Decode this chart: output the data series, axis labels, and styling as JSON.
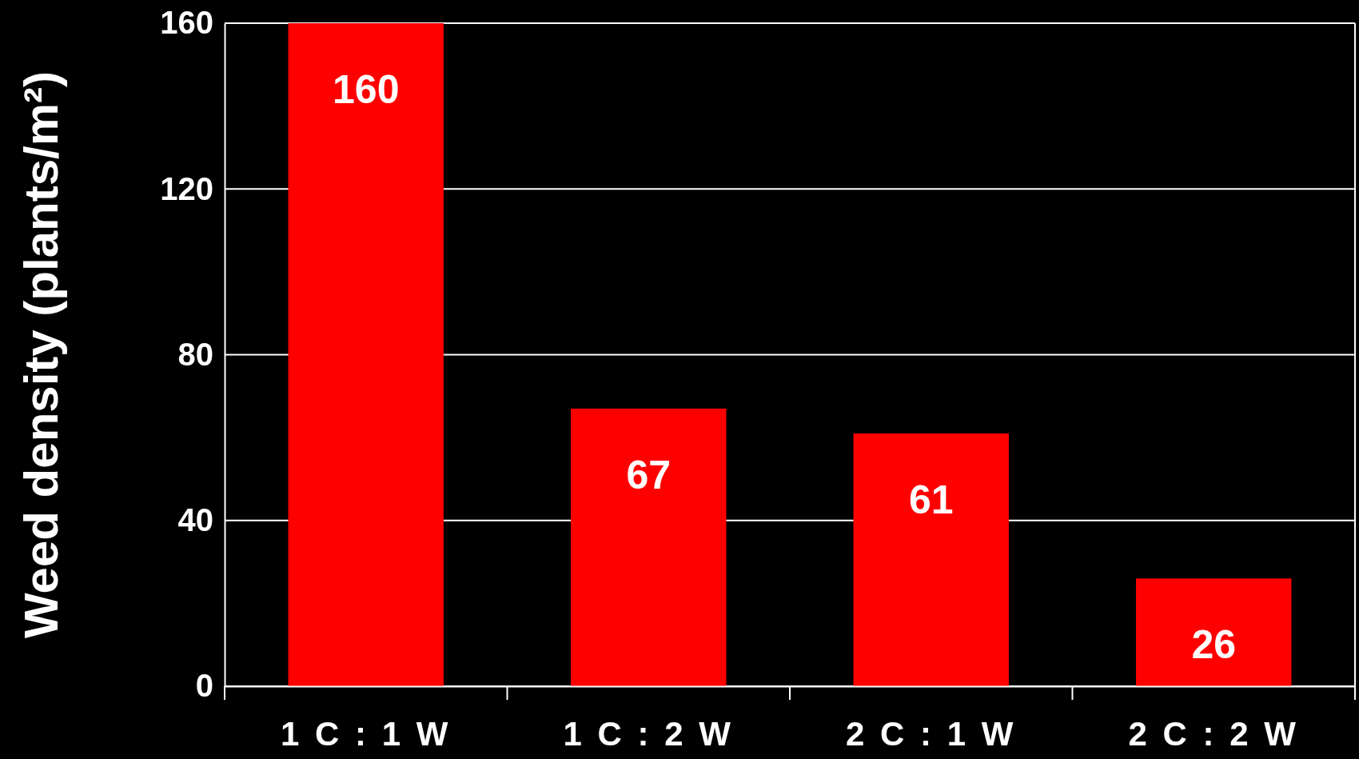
{
  "chart_data": {
    "type": "bar",
    "ylabel": "Weed density (plants/m²)",
    "categories": [
      "1 C : 1 W",
      "1 C : 2 W",
      "2 C : 1 W",
      "2 C : 2 W"
    ],
    "values": [
      160,
      67,
      61,
      26
    ],
    "color": "#ff0000",
    "ylim": [
      0,
      160
    ],
    "yticks": [
      0,
      40,
      80,
      120,
      160
    ],
    "grid": "y",
    "data_labels": true
  }
}
